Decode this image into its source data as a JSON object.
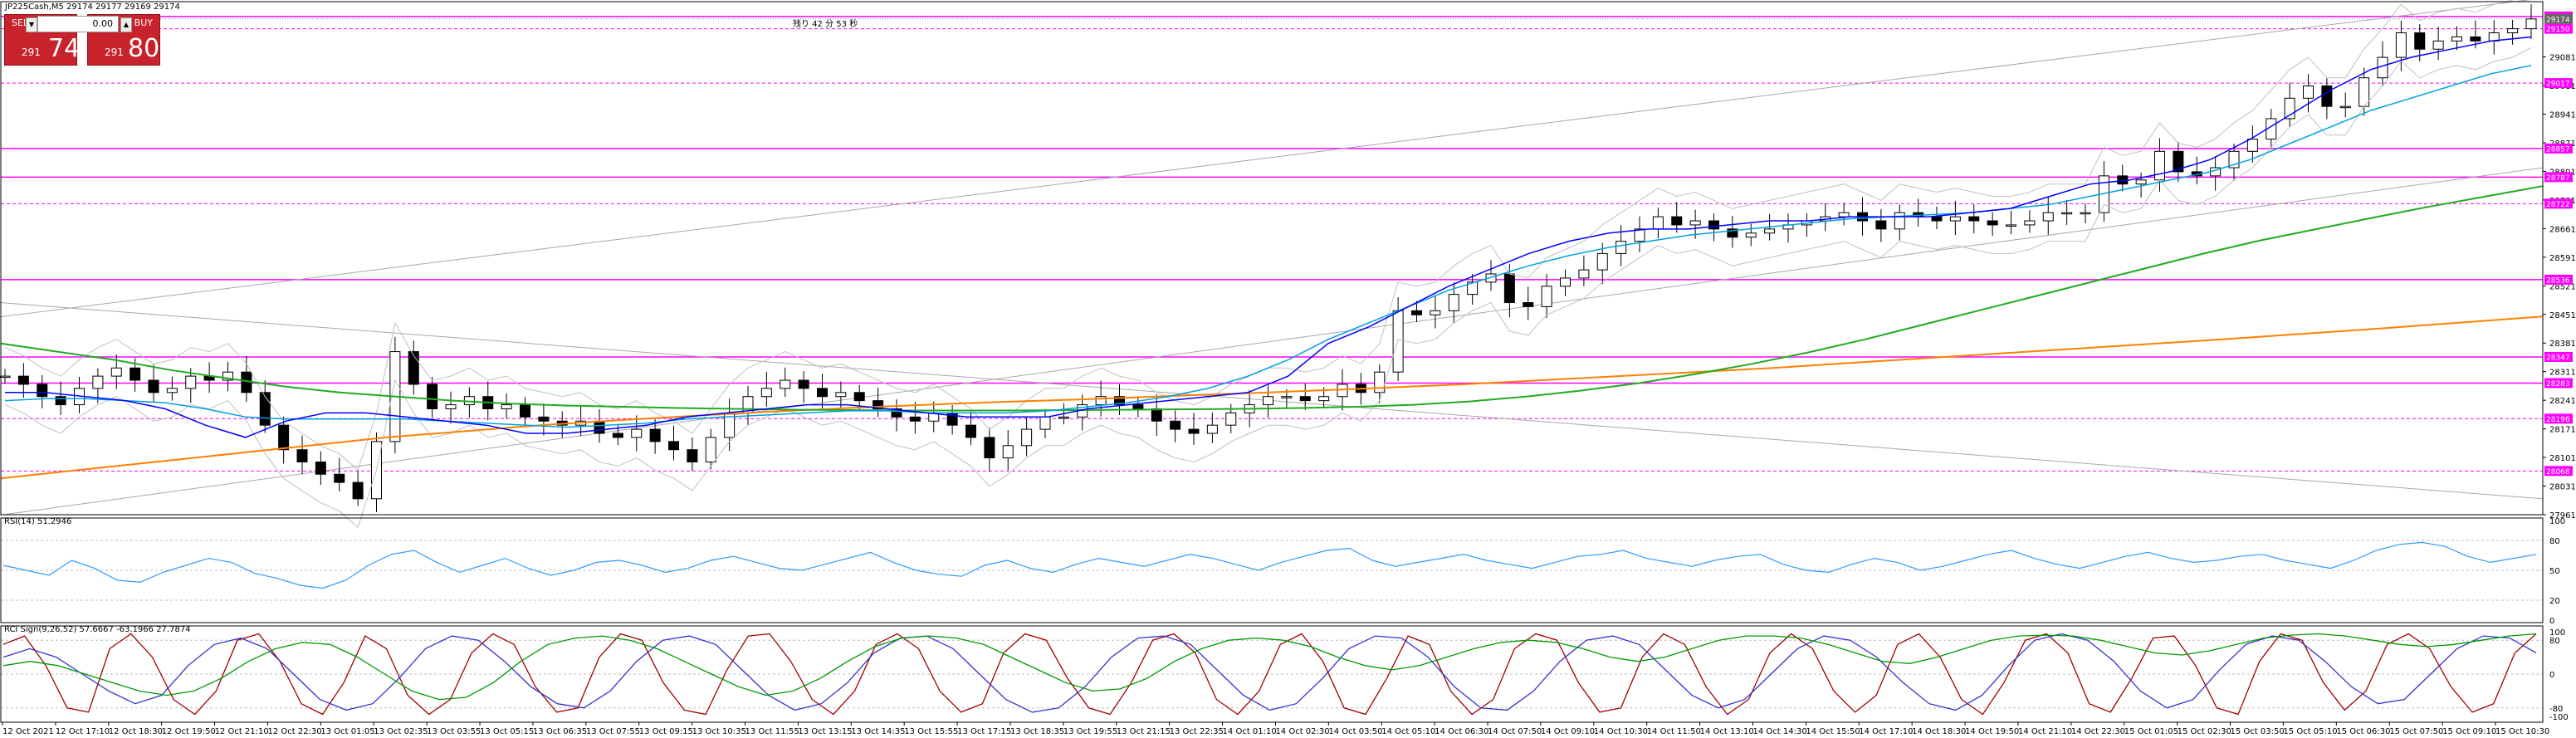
{
  "window": {
    "symbol_header": "JP225Cash,M5  29174 29177 29169 29174",
    "countdown": "残り  42 分 53 秒"
  },
  "trade_panel": {
    "sell_label": "SELL",
    "buy_label": "BUY",
    "lot_value": "0.00",
    "sell_small": "291",
    "sell_big": "74",
    "buy_small": "291",
    "buy_big": "80"
  },
  "colors": {
    "candle": "#000000",
    "hline": "#ff00ff",
    "ma_short": "#0000ff",
    "ma_mid": "#00a0e0",
    "ma_long_green": "#22aa22",
    "ma_orange": "#ff8000",
    "trend_gray": "#a8a8a8",
    "bollinger": "#c0c0c0",
    "rsi": "#3399ff",
    "rci_red": "#a00000",
    "rci_blue": "#3333cc",
    "rci_green": "#009900"
  },
  "chart_data": [
    {
      "type": "candlestick",
      "name": "main",
      "ylim": [
        27961,
        29200
      ],
      "yticks": [
        29081,
        29011,
        28941,
        28871,
        28801,
        28731,
        28661,
        28591,
        28521,
        28451,
        28381,
        28311,
        28241,
        28171,
        28101,
        28031,
        27961
      ],
      "price_tags": [
        {
          "label": "29180",
          "value": 29180,
          "style": "solid"
        },
        {
          "label": "29150",
          "value": 29150,
          "style": "dashed"
        },
        {
          "label": "29174",
          "value": 29174,
          "style": "current"
        },
        {
          "label": "29017",
          "value": 29017,
          "style": "dashed"
        },
        {
          "label": "28857",
          "value": 28857,
          "style": "solid"
        },
        {
          "label": "28787",
          "value": 28787,
          "style": "solid"
        },
        {
          "label": "28722",
          "value": 28722,
          "style": "dashed"
        },
        {
          "label": "28536",
          "value": 28536,
          "style": "solid"
        },
        {
          "label": "28347",
          "value": 28347,
          "style": "solid"
        },
        {
          "label": "28283",
          "value": 28283,
          "style": "solid"
        },
        {
          "label": "28196",
          "value": 28196,
          "style": "dashed"
        },
        {
          "label": "28068",
          "value": 28068,
          "style": "dashed"
        }
      ],
      "series": [
        {
          "name": "candles_close",
          "values": [
            28300,
            28280,
            28250,
            28230,
            28270,
            28300,
            28320,
            28290,
            28260,
            28270,
            28300,
            28290,
            28310,
            28260,
            28180,
            28120,
            28090,
            28060,
            28040,
            28000,
            28140,
            28360,
            28280,
            28220,
            28230,
            28250,
            28220,
            28230,
            28200,
            28190,
            28180,
            28190,
            28160,
            28150,
            28170,
            28140,
            28120,
            28090,
            28150,
            28210,
            28250,
            28270,
            28290,
            28270,
            28250,
            28260,
            28240,
            28220,
            28200,
            28190,
            28210,
            28180,
            28150,
            28100,
            28130,
            28170,
            28200,
            28200,
            28230,
            28250,
            28230,
            28220,
            28190,
            28170,
            28160,
            28180,
            28210,
            28230,
            28250,
            28250,
            28240,
            28250,
            28280,
            28260,
            28310,
            28460,
            28450,
            28460,
            28500,
            28530,
            28550,
            28480,
            28470,
            28520,
            28540,
            28560,
            28600,
            28630,
            28660,
            28690,
            28670,
            28680,
            28660,
            28640,
            28650,
            28660,
            28670,
            28680,
            28690,
            28700,
            28680,
            28660,
            28700,
            28690,
            28680,
            28690,
            28680,
            28670,
            28670,
            28680,
            28700,
            28700,
            28700,
            28790,
            28770,
            28780,
            28850,
            28800,
            28790,
            28810,
            28850,
            28880,
            28930,
            28980,
            29010,
            28960,
            28960,
            29030,
            29080,
            29140,
            29100,
            29120,
            29130,
            29120,
            29140,
            29150,
            29174
          ]
        },
        {
          "name": "ma_short",
          "values": [
            28260,
            28260,
            28250,
            28240,
            28220,
            28180,
            28150,
            28190,
            28210,
            28210,
            28200,
            28190,
            28180,
            28160,
            28160,
            28170,
            28180,
            28200,
            28210,
            28220,
            28230,
            28230,
            28220,
            28210,
            28200,
            28200,
            28200,
            28220,
            28230,
            28240,
            28250,
            28260,
            28300,
            28380,
            28420,
            28470,
            28520,
            28560,
            28600,
            28630,
            28650,
            28660,
            28660,
            28670,
            28680,
            28680,
            28690,
            28690,
            28690,
            28700,
            28710,
            28740,
            28770,
            28780,
            28800,
            28830,
            28880,
            28940,
            29000,
            29050,
            29080,
            29100,
            29120,
            29130
          ]
        },
        {
          "name": "ma_mid",
          "values": [
            28240,
            28245,
            28245,
            28240,
            28235,
            28220,
            28200,
            28195,
            28195,
            28195,
            28195,
            28190,
            28185,
            28180,
            28175,
            28180,
            28185,
            28195,
            28200,
            28205,
            28210,
            28215,
            28215,
            28210,
            28210,
            28210,
            28215,
            28225,
            28235,
            28250,
            28270,
            28300,
            28340,
            28390,
            28430,
            28470,
            28510,
            28540,
            28570,
            28595,
            28615,
            28630,
            28645,
            28655,
            28665,
            28675,
            28685,
            28690,
            28695,
            28700,
            28710,
            28720,
            28740,
            28760,
            28780,
            28800,
            28830,
            28870,
            28910,
            28950,
            28980,
            29010,
            29040,
            29060
          ]
        },
        {
          "name": "ma_green",
          "values": [
            28380,
            28360,
            28340,
            28315,
            28295,
            28275,
            28260,
            28250,
            28240,
            28233,
            28228,
            28225,
            28222,
            28220,
            28218,
            28217,
            28216,
            28216,
            28216,
            28217,
            28218,
            28219,
            28220,
            28222,
            28225,
            28230,
            28238,
            28250,
            28265,
            28283,
            28305,
            28330,
            28358,
            28390,
            28425,
            28460,
            28495,
            28530,
            28565,
            28600,
            28632,
            28660,
            28688,
            28715,
            28740,
            28765
          ]
        },
        {
          "name": "ma_orange",
          "values": [
            28050,
            28070,
            28090,
            28110,
            28130,
            28150,
            28165,
            28180,
            28192,
            28203,
            28213,
            28222,
            28230,
            28237,
            28243,
            28250,
            28257,
            28264,
            28272,
            28280,
            28290,
            28300,
            28310,
            28320,
            28332,
            28344,
            28356,
            28368,
            28380,
            28392,
            28405,
            28418,
            28432,
            28446
          ]
        }
      ],
      "trendlines": [
        {
          "name": "upper_channel",
          "from": [
            0,
            28445
          ],
          "to": [
            1,
            29225
          ]
        },
        {
          "name": "lower_channel",
          "from": [
            0,
            28480
          ],
          "to": [
            1,
            28000
          ]
        },
        {
          "name": "mid_channel",
          "from": [
            0,
            27960
          ],
          "to": [
            1,
            28810
          ]
        }
      ],
      "xticks": [
        "12 Oct 2021",
        "12 Oct 17:10",
        "12 Oct 18:30",
        "12 Oct 19:50",
        "12 Oct 21:10",
        "12 Oct 22:30",
        "13 Oct 01:05",
        "13 Oct 02:35",
        "13 Oct 03:55",
        "13 Oct 05:15",
        "13 Oct 06:35",
        "13 Oct 07:55",
        "13 Oct 09:15",
        "13 Oct 10:35",
        "13 Oct 11:55",
        "13 Oct 13:15",
        "13 Oct 14:35",
        "13 Oct 15:55",
        "13 Oct 17:15",
        "13 Oct 18:35",
        "13 Oct 19:55",
        "13 Oct 21:15",
        "13 Oct 22:35",
        "14 Oct 01:10",
        "14 Oct 02:30",
        "14 Oct 03:50",
        "14 Oct 05:10",
        "14 Oct 06:30",
        "14 Oct 07:50",
        "14 Oct 09:10",
        "14 Oct 10:30",
        "14 Oct 11:50",
        "14 Oct 13:10",
        "14 Oct 14:30",
        "14 Oct 15:50",
        "14 Oct 17:10",
        "14 Oct 18:30",
        "14 Oct 19:50",
        "14 Oct 21:10",
        "14 Oct 22:30",
        "15 Oct 01:05",
        "15 Oct 02:30",
        "15 Oct 03:50",
        "15 Oct 05:10",
        "15 Oct 06:30",
        "15 Oct 07:50",
        "15 Oct 09:10",
        "15 Oct 10:30"
      ]
    },
    {
      "type": "line",
      "name": "rsi",
      "title": "RSI(14) 51.2946",
      "ylim": [
        0,
        100
      ],
      "yticks": [
        100,
        80,
        50,
        20,
        0
      ],
      "levels": [
        80,
        50,
        20
      ],
      "values": [
        55,
        50,
        45,
        60,
        52,
        40,
        38,
        48,
        55,
        62,
        58,
        47,
        42,
        35,
        32,
        40,
        55,
        66,
        70,
        58,
        48,
        55,
        62,
        52,
        45,
        50,
        58,
        60,
        55,
        48,
        52,
        60,
        64,
        58,
        52,
        50,
        56,
        62,
        68,
        58,
        50,
        46,
        44,
        55,
        60,
        52,
        48,
        56,
        62,
        58,
        54,
        60,
        66,
        62,
        56,
        50,
        58,
        64,
        70,
        72,
        60,
        54,
        58,
        62,
        66,
        60,
        56,
        52,
        58,
        64,
        66,
        70,
        62,
        58,
        54,
        60,
        64,
        66,
        56,
        50,
        48,
        56,
        62,
        58,
        50,
        54,
        60,
        66,
        70,
        62,
        56,
        52,
        58,
        64,
        68,
        62,
        58,
        60,
        64,
        66,
        60,
        56,
        52,
        60,
        70,
        76,
        78,
        74,
        64,
        58,
        62,
        66
      ]
    },
    {
      "type": "line",
      "name": "rci",
      "title": "RCI Sign(9,26,52) 57.6667 -63.1966 27.7874",
      "ylim": [
        -100,
        100
      ],
      "yticks": [
        100,
        80,
        0,
        -80,
        -100
      ],
      "levels": [
        80,
        0,
        -80
      ],
      "series": [
        {
          "name": "rci_short",
          "values": [
            70,
            90,
            20,
            -80,
            -90,
            60,
            95,
            40,
            -60,
            -95,
            -40,
            80,
            95,
            30,
            -70,
            -95,
            -20,
            90,
            60,
            -50,
            -95,
            -60,
            50,
            95,
            70,
            -30,
            -90,
            -80,
            40,
            95,
            80,
            -20,
            -85,
            -95,
            10,
            90,
            95,
            30,
            -60,
            -95,
            -40,
            70,
            95,
            60,
            -40,
            -90,
            -70,
            50,
            95,
            80,
            -10,
            -80,
            -95,
            -20,
            80,
            95,
            50,
            -60,
            -95,
            -40,
            70,
            95,
            30,
            -80,
            -95,
            -10,
            90,
            70,
            -40,
            -95,
            -60,
            60,
            95,
            80,
            -20,
            -90,
            -80,
            40,
            95,
            70,
            -30,
            -95,
            -60,
            50,
            95,
            60,
            -40,
            -90,
            -50,
            70,
            95,
            40,
            -60,
            -95,
            -20,
            80,
            95,
            50,
            -70,
            -90,
            -10,
            85,
            90,
            20,
            -80,
            -95,
            30,
            95,
            80,
            -20,
            -85,
            -40,
            70,
            95,
            60,
            -30,
            -90,
            -70,
            50,
            95
          ]
        },
        {
          "name": "rci_mid",
          "values": [
            40,
            60,
            40,
            0,
            -40,
            -70,
            -50,
            20,
            70,
            85,
            60,
            0,
            -60,
            -85,
            -70,
            -10,
            60,
            90,
            80,
            30,
            -30,
            -70,
            -80,
            -40,
            30,
            80,
            90,
            70,
            10,
            -50,
            -85,
            -70,
            -20,
            50,
            85,
            90,
            60,
            0,
            -60,
            -90,
            -80,
            -30,
            40,
            85,
            90,
            70,
            10,
            -50,
            -85,
            -70,
            -10,
            60,
            90,
            85,
            40,
            -30,
            -80,
            -85,
            -40,
            30,
            80,
            90,
            70,
            10,
            -50,
            -80,
            -60,
            0,
            60,
            90,
            80,
            40,
            -20,
            -70,
            -85,
            -50,
            20,
            80,
            95,
            80,
            30,
            -40,
            -80,
            -60,
            10,
            70,
            90,
            80,
            30,
            -30,
            -70,
            -60,
            0,
            60,
            90,
            85,
            50
          ]
        },
        {
          "name": "rci_long",
          "values": [
            20,
            30,
            20,
            0,
            -20,
            -40,
            -50,
            -40,
            -10,
            30,
            60,
            75,
            70,
            40,
            0,
            -40,
            -60,
            -55,
            -20,
            30,
            70,
            85,
            90,
            80,
            60,
            30,
            0,
            -30,
            -50,
            -40,
            -10,
            30,
            65,
            85,
            90,
            85,
            70,
            40,
            10,
            -20,
            -40,
            -35,
            -10,
            30,
            60,
            80,
            85,
            80,
            65,
            40,
            20,
            10,
            20,
            40,
            60,
            75,
            80,
            75,
            60,
            40,
            30,
            40,
            60,
            80,
            90,
            90,
            85,
            70,
            50,
            30,
            25,
            40,
            60,
            80,
            90,
            92,
            90,
            80,
            65,
            50,
            45,
            55,
            70,
            85,
            92,
            95,
            90,
            80,
            70,
            65,
            70,
            80,
            90,
            95
          ]
        }
      ]
    }
  ]
}
